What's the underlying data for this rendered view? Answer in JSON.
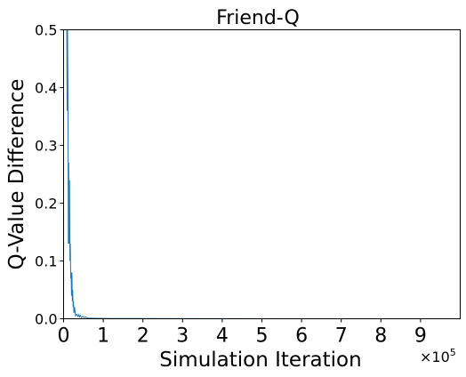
{
  "chart_data": {
    "type": "line",
    "title": "Friend-Q",
    "xlabel": "Simulation Iteration",
    "ylabel": "Q-Value Difference",
    "x_multiplier_label": "×10",
    "x_multiplier_exponent": "5",
    "xlim": [
      0,
      1000000
    ],
    "ylim": [
      0,
      0.5
    ],
    "xticks": [
      0,
      100000,
      200000,
      300000,
      400000,
      500000,
      600000,
      700000,
      800000,
      900000
    ],
    "xtick_labels": [
      "0",
      "1",
      "2",
      "3",
      "4",
      "5",
      "6",
      "7",
      "8",
      "9"
    ],
    "yticks": [
      0.0,
      0.1,
      0.2,
      0.3,
      0.4,
      0.5
    ],
    "ytick_labels": [
      "0.0",
      "0.1",
      "0.2",
      "0.3",
      "0.4",
      "0.5"
    ],
    "grid": false,
    "series": [
      {
        "color": "#1f77b4",
        "x": [
          0,
          2000,
          3500,
          4500,
          6000,
          7000,
          8000,
          9000,
          10000,
          11000,
          12000,
          13000,
          14000,
          15000,
          16000,
          17000,
          18000,
          19000,
          20000,
          21000,
          22000,
          23000,
          24000,
          25000,
          26000,
          28000,
          30000,
          33000,
          36000,
          38000,
          40000,
          42000,
          45000,
          48000,
          52000,
          56000,
          60000,
          70000,
          100000,
          200000,
          400000,
          600000,
          800000,
          1000000
        ],
        "y": [
          0.5,
          0.5,
          0.5,
          0.5,
          0.5,
          0.5,
          0.5,
          0.36,
          0.5,
          0.39,
          0.13,
          0.27,
          0.13,
          0.24,
          0.1,
          0.13,
          0.07,
          0.08,
          0.04,
          0.08,
          0.03,
          0.05,
          0.02,
          0.03,
          0.01,
          0.02,
          0.005,
          0.008,
          0.004,
          0.007,
          0.003,
          0.006,
          0.002,
          0.004,
          0.002,
          0.003,
          0.001,
          0.001,
          0.0005,
          0.0003,
          0.0002,
          0.0001,
          0.0001,
          0.0001
        ]
      }
    ]
  }
}
